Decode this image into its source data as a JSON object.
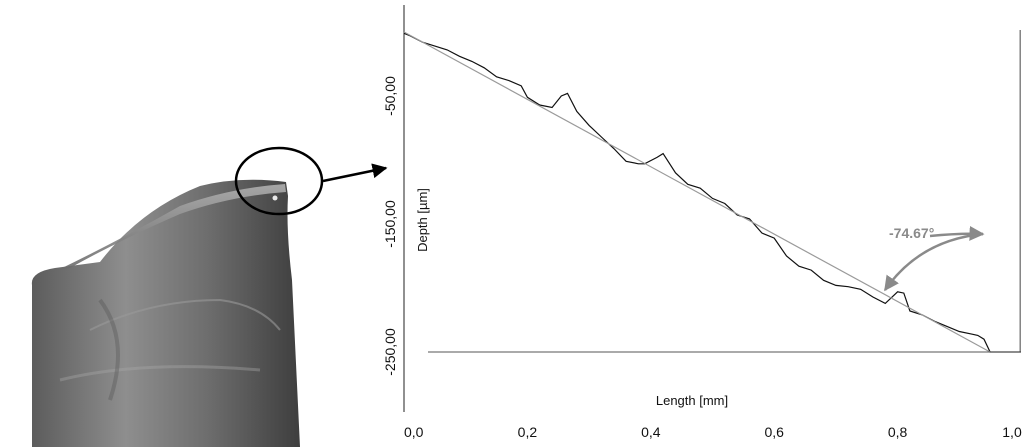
{
  "photo": {
    "description_icon": "tool-tip-photo"
  },
  "chart_data": {
    "type": "line",
    "xlabel": "Length [mm]",
    "ylabel": "Depth [µm]",
    "xlim": [
      0.0,
      1.0
    ],
    "ylim": [
      -290,
      0
    ],
    "x_ticks": [
      0.0,
      0.2,
      0.4,
      0.6,
      0.8,
      1.0
    ],
    "x_tick_labels": [
      "0,0",
      "0,2",
      "0,4",
      "0,6",
      "0,8",
      "1,0"
    ],
    "y_ticks": [
      -50,
      -150,
      -250
    ],
    "y_tick_labels": [
      "-50,00",
      "-150,00",
      "-250,00"
    ],
    "grid": false,
    "angle_annotation": "-74.67°",
    "series": [
      {
        "style": "measured-profile",
        "x": [
          0.0,
          0.01,
          0.03,
          0.05,
          0.07,
          0.09,
          0.11,
          0.13,
          0.15,
          0.17,
          0.19,
          0.2,
          0.22,
          0.24,
          0.255,
          0.265,
          0.28,
          0.3,
          0.32,
          0.34,
          0.36,
          0.38,
          0.39,
          0.41,
          0.42,
          0.44,
          0.46,
          0.48,
          0.5,
          0.52,
          0.54,
          0.56,
          0.58,
          0.6,
          0.62,
          0.64,
          0.66,
          0.68,
          0.7,
          0.72,
          0.74,
          0.76,
          0.78,
          0.8,
          0.81,
          0.82,
          0.84,
          0.86,
          0.88,
          0.9,
          0.92,
          0.93,
          0.94,
          0.95,
          0.96,
          1.0
        ],
        "y": [
          -1,
          -3,
          -8,
          -11,
          -14,
          -19,
          -23,
          -28,
          -35,
          -38,
          -42,
          -51,
          -57,
          -59,
          -50,
          -48,
          -62,
          -73,
          -82,
          -91,
          -101,
          -103,
          -103,
          -98,
          -95,
          -110,
          -119,
          -122,
          -130,
          -134,
          -143,
          -146,
          -157,
          -161,
          -175,
          -183,
          -186,
          -194,
          -198,
          -199,
          -201,
          -207,
          -212,
          -203,
          -204,
          -218,
          -221,
          -226,
          -230,
          -234,
          -236,
          -237,
          -240,
          -250,
          -250,
          -250
        ]
      },
      {
        "style": "fitted-line",
        "x": [
          0.0,
          0.95
        ],
        "y": [
          0,
          -250
        ]
      },
      {
        "style": "reference-line",
        "x": [
          0.0,
          1.0
        ],
        "y": [
          -250,
          -250
        ]
      }
    ],
    "vertical_reference_x": 0.95
  }
}
